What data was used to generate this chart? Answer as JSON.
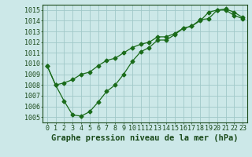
{
  "title": "Graphe pression niveau de la mer (hPa)",
  "x_ticks": [
    0,
    1,
    2,
    3,
    4,
    5,
    6,
    7,
    8,
    9,
    10,
    11,
    12,
    13,
    14,
    15,
    16,
    17,
    18,
    19,
    20,
    21,
    22,
    23
  ],
  "y_ticks": [
    1005,
    1006,
    1007,
    1008,
    1009,
    1010,
    1011,
    1012,
    1013,
    1014,
    1015
  ],
  "xlim": [
    -0.5,
    23.5
  ],
  "ylim": [
    1004.5,
    1015.5
  ],
  "line1_x": [
    0,
    1,
    2,
    3,
    4,
    5,
    6,
    7,
    8,
    9,
    10,
    11,
    12,
    13,
    14,
    15,
    16,
    17,
    18,
    19,
    20,
    21,
    22,
    23
  ],
  "line1_y": [
    1009.8,
    1008.0,
    1008.2,
    1008.5,
    1009.0,
    1009.2,
    1009.8,
    1010.3,
    1010.5,
    1011.0,
    1011.5,
    1011.8,
    1012.0,
    1012.5,
    1012.5,
    1012.8,
    1013.3,
    1013.5,
    1014.1,
    1014.2,
    1015.0,
    1015.1,
    1014.8,
    1014.3
  ],
  "line2_x": [
    0,
    1,
    2,
    3,
    4,
    5,
    6,
    7,
    8,
    9,
    10,
    11,
    12,
    13,
    14,
    15,
    16,
    17,
    18,
    19,
    20,
    21,
    22,
    23
  ],
  "line2_y": [
    1009.8,
    1008.0,
    1006.5,
    1005.2,
    1005.1,
    1005.5,
    1006.4,
    1007.4,
    1008.0,
    1009.0,
    1010.2,
    1011.1,
    1011.5,
    1012.2,
    1012.2,
    1012.7,
    1013.3,
    1013.5,
    1014.0,
    1014.8,
    1015.0,
    1015.0,
    1014.5,
    1014.2
  ],
  "line_color": "#1a6b1a",
  "marker": "D",
  "marker_size": 2.5,
  "bg_color": "#cce8e8",
  "grid_color": "#a0c8c8",
  "font_color": "#1a4a1a",
  "title_fontsize": 7.5,
  "tick_fontsize": 6.0,
  "linewidth": 0.9
}
